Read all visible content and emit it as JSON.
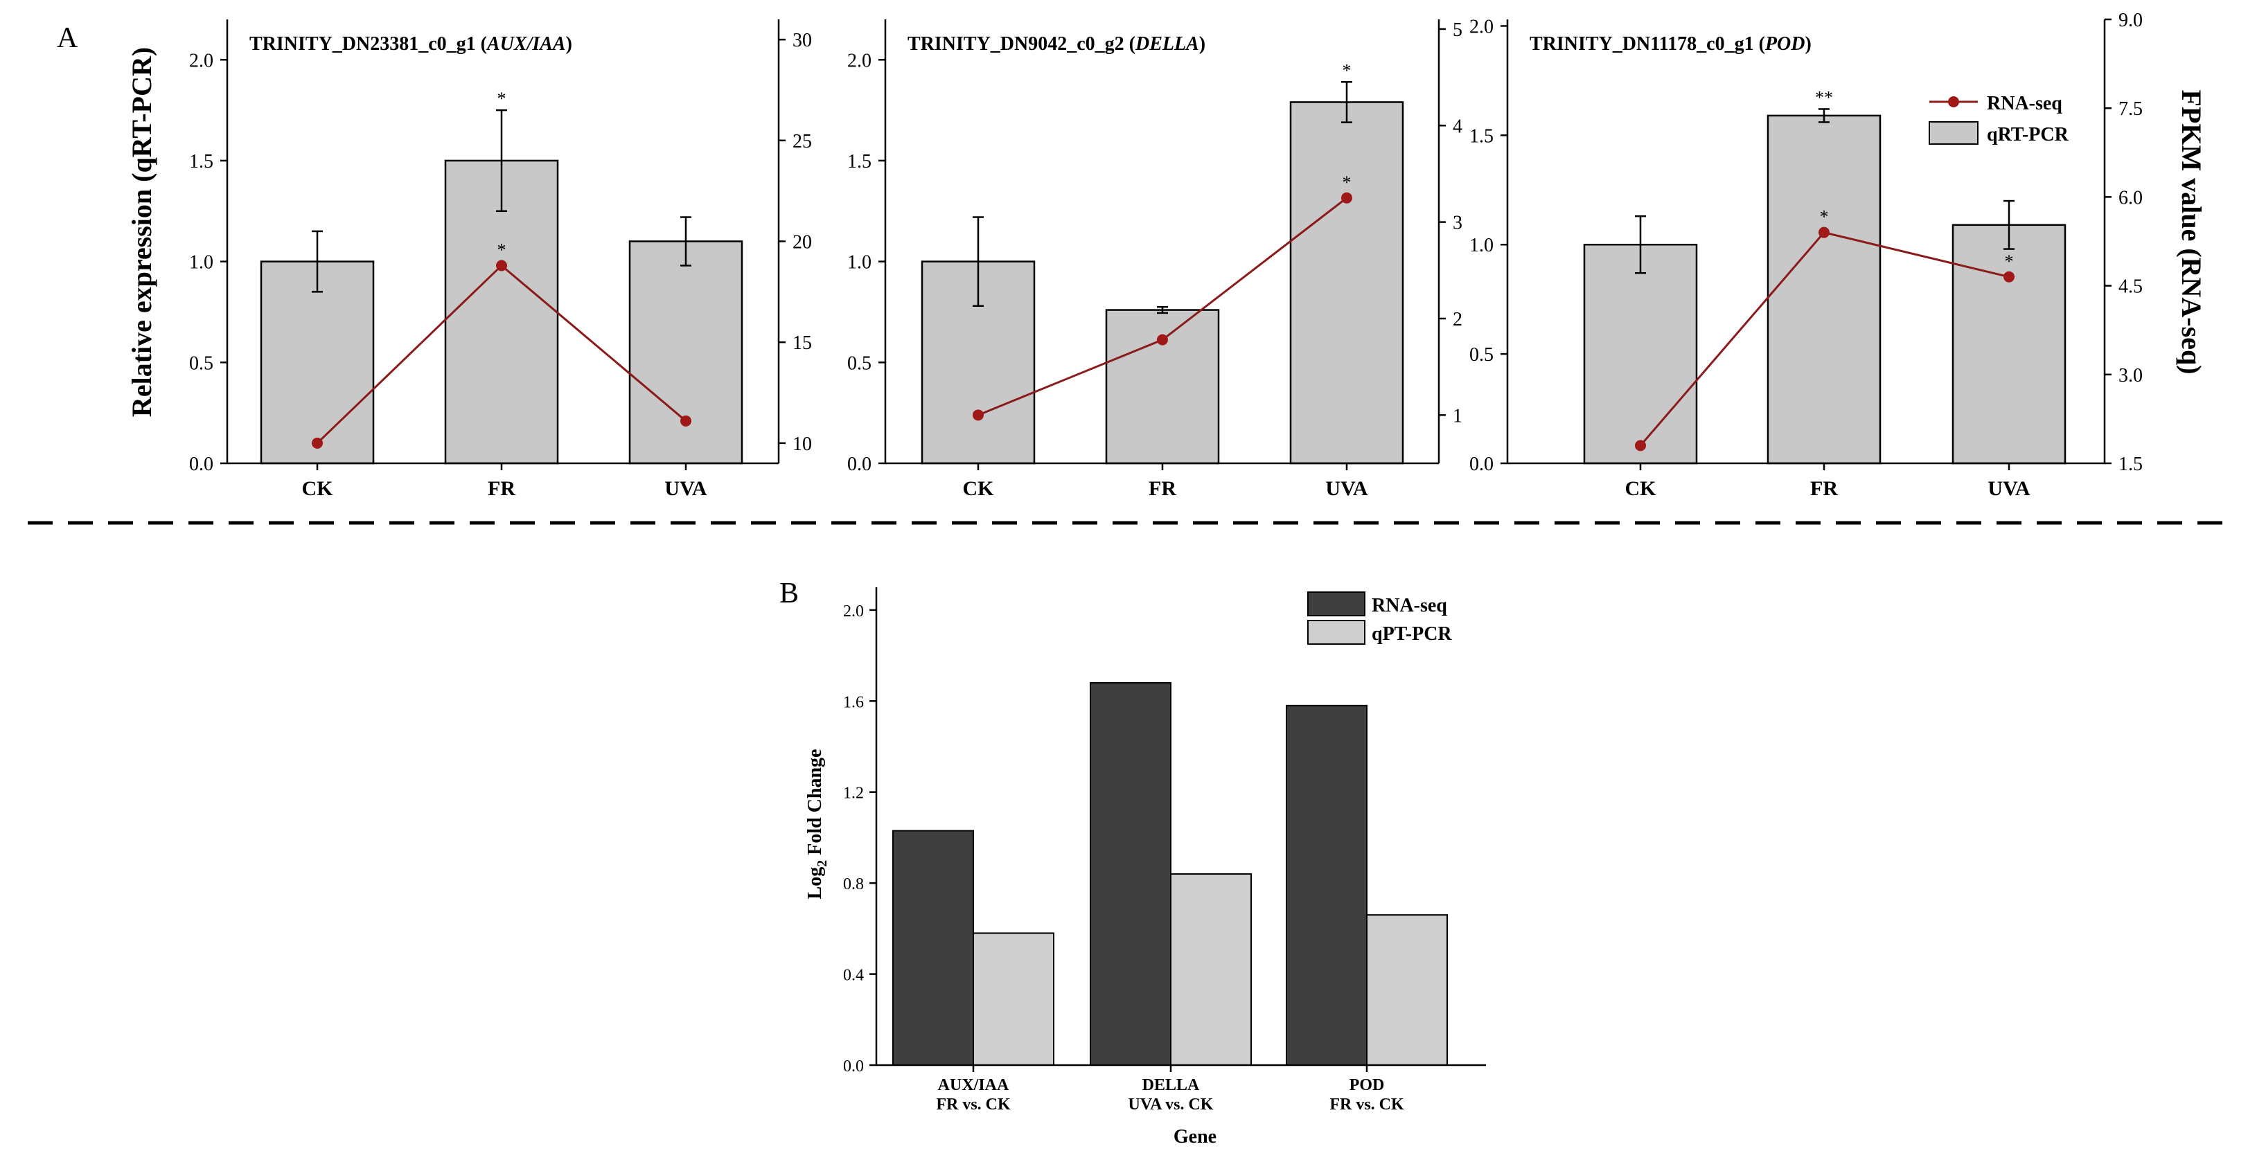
{
  "panel_a_label": "A",
  "panel_b_label": "B",
  "shared_ylabel_left": "Relative expression (qRT-PCR)",
  "shared_ylabel_right": "FPKM value (RNA-seq)",
  "legend_a": {
    "line_label": "RNA-seq",
    "bar_label": "qRT-PCR"
  },
  "colors": {
    "line": "#8b1a1a",
    "marker": "#a01818",
    "bar_a": "#c8c8c8",
    "bar_dark": "#3f3f3f",
    "bar_light": "#cfcfcf",
    "divider": "#000000"
  },
  "chart_data": [
    {
      "type": "bar+line",
      "title_prefix": "TRINITY_DN23381_c0_g1 (",
      "title_gene": "AUX/IAA",
      "title_suffix": ")",
      "categories": [
        "CK",
        "FR",
        "UVA"
      ],
      "bar_series": {
        "name": "qRT-PCR",
        "values": [
          1.0,
          1.5,
          1.1
        ],
        "errors": [
          0.15,
          0.25,
          0.12
        ],
        "sig": [
          "",
          "*",
          ""
        ]
      },
      "line_series": {
        "name": "RNA-seq",
        "values": [
          10.0,
          18.8,
          11.1
        ],
        "sig": [
          "",
          "*",
          ""
        ]
      },
      "y_left": {
        "min": 0,
        "max": 2.2,
        "ticks": [
          0,
          0.5,
          1.0,
          1.5,
          2.0
        ],
        "tick_labels": [
          "0.0",
          "0.5",
          "1.0",
          "1.5",
          "2.0"
        ]
      },
      "y_right": {
        "min": 9,
        "max": 31,
        "ticks": [
          10,
          15,
          20,
          25,
          30
        ],
        "tick_labels": [
          "10",
          "15",
          "20",
          "25",
          "30"
        ]
      }
    },
    {
      "type": "bar+line",
      "title_prefix": "TRINITY_DN9042_c0_g2 (",
      "title_gene": "DELLA",
      "title_suffix": ")",
      "categories": [
        "CK",
        "FR",
        "UVA"
      ],
      "bar_series": {
        "name": "qRT-PCR",
        "values": [
          1.0,
          0.76,
          1.79
        ],
        "errors": [
          0.22,
          0.015,
          0.1
        ],
        "sig": [
          "",
          "",
          "*"
        ]
      },
      "line_series": {
        "name": "RNA-seq",
        "values": [
          1.0,
          1.78,
          3.25
        ],
        "sig": [
          "",
          "",
          "*"
        ]
      },
      "y_left": {
        "min": 0,
        "max": 2.2,
        "ticks": [
          0,
          0.5,
          1.0,
          1.5,
          2.0
        ],
        "tick_labels": [
          "0.0",
          "0.5",
          "1.0",
          "1.5",
          "2.0"
        ]
      },
      "y_right": {
        "min": 0.5,
        "max": 5.1,
        "ticks": [
          1,
          2,
          3,
          4,
          5
        ],
        "tick_labels": [
          "1",
          "2",
          "3",
          "4",
          "5"
        ]
      }
    },
    {
      "type": "bar+line",
      "title_prefix": "TRINITY_DN11178_c0_g1 (",
      "title_gene": "POD",
      "title_suffix": ")",
      "categories": [
        "CK",
        "FR",
        "UVA"
      ],
      "bar_series": {
        "name": "qRT-PCR",
        "values": [
          1.0,
          1.59,
          1.09
        ],
        "errors": [
          0.13,
          0.03,
          0.11
        ],
        "sig": [
          "",
          "**",
          ""
        ]
      },
      "line_series": {
        "name": "RNA-seq",
        "values": [
          1.8,
          5.4,
          4.65
        ],
        "sig": [
          "",
          "*",
          "*"
        ]
      },
      "y_left": {
        "min": 0,
        "max": 2.03,
        "ticks": [
          0,
          0.5,
          1.0,
          1.5,
          2.0
        ],
        "tick_labels": [
          "0.0",
          "0.5",
          "1.0",
          "1.5",
          "2.0"
        ]
      },
      "y_right": {
        "min": 1.5,
        "max": 9.0,
        "ticks": [
          1.5,
          3.0,
          4.5,
          6.0,
          7.5,
          9.0
        ],
        "tick_labels": [
          "1.5",
          "3.0",
          "4.5",
          "6.0",
          "7.5",
          "9.0"
        ]
      }
    },
    {
      "type": "bar",
      "categories": [
        {
          "gene": "AUX/IAA",
          "comparison": "FR vs. CK"
        },
        {
          "gene": "DELLA",
          "comparison": "UVA vs. CK"
        },
        {
          "gene": "POD",
          "comparison": "FR vs. CK"
        }
      ],
      "series": [
        {
          "name": "RNA-seq",
          "values": [
            1.03,
            1.68,
            1.58
          ]
        },
        {
          "name": "qPT-PCR",
          "values": [
            0.58,
            0.84,
            0.66
          ]
        }
      ],
      "xlabel": "Gene",
      "ylabel_main": "Log",
      "ylabel_sub": "2",
      "ylabel_rest": " Fold Change",
      "ylim": [
        0,
        2.1
      ],
      "y_ticks": [
        0,
        0.4,
        0.8,
        1.2,
        1.6,
        2.0
      ],
      "y_tick_labels": [
        "0.0",
        "0.4",
        "0.8",
        "1.2",
        "1.6",
        "2.0"
      ]
    }
  ]
}
